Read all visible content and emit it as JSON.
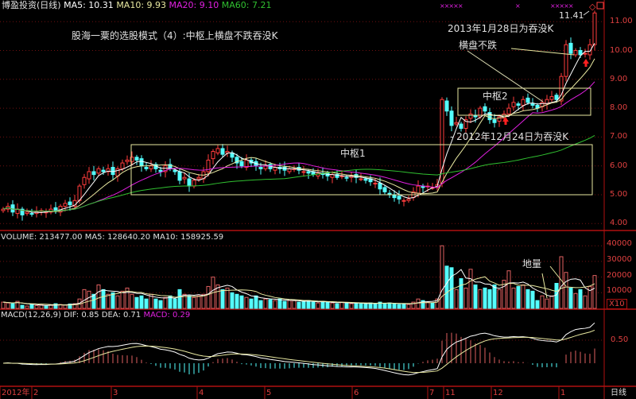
{
  "header": {
    "stock": "博盈投资(日线)",
    "ma5": "MA5: 10.31",
    "ma10": "MA10: 9.93",
    "ma20": "MA20: 9.10",
    "ma60": "MA60: 7.21"
  },
  "volume_header": {
    "volume": "VOLUME: 213477.00",
    "ma5": "MA5: 128640.20",
    "ma10": "MA10: 158925.59"
  },
  "macd_header": {
    "name": "MACD(12,26,9)",
    "dif": "DIF: 0.85",
    "dea": "DEA: 0.71",
    "macd": "MACD: 0.29"
  },
  "annotations": {
    "title": "股海一粟的选股模式（4）:中枢上横盘不跌吞没K",
    "zhongshu1": "中枢1",
    "zhongshu2": "中枢2",
    "engulf1": "- 2012年12月24日为吞没K",
    "engulf2": "2013年1月28日为吞没K",
    "sideways": "横盘不跌",
    "low_volume": "地量",
    "high_price": "11.41",
    "markers_left": "×××××",
    "markers_mid": "×",
    "markers_right": "×××××"
  },
  "price_axis": [
    "11.00",
    "10.00",
    "9.00",
    "8.00",
    "7.00",
    "6.00",
    "5.00",
    "4.00"
  ],
  "volume_axis": [
    "40000",
    "30000",
    "20000",
    "10000"
  ],
  "volume_unit": "X10",
  "macd_axis": [
    "0.50"
  ],
  "date_axis": [
    "2012年",
    "2",
    "3",
    "4",
    "5",
    "6",
    "7",
    "11",
    "12",
    "1"
  ],
  "period_label": "日线",
  "colors": {
    "up": "#ff3c3c",
    "down": "#54ffff",
    "ma5": "#ffffff",
    "ma10": "#e8e8a0",
    "ma20": "#e020e0",
    "ma60": "#30c030",
    "axis": "#b01010",
    "box": "#e8e8a0"
  },
  "chart_data": {
    "type": "candlestick",
    "price_range": [
      3.9,
      11.7
    ],
    "closes": [
      4.5,
      4.6,
      4.4,
      4.5,
      4.3,
      4.4,
      4.35,
      4.4,
      4.45,
      4.4,
      4.5,
      4.45,
      4.6,
      4.7,
      4.65,
      4.8,
      5.3,
      5.6,
      5.8,
      5.7,
      5.9,
      5.8,
      5.9,
      5.7,
      5.9,
      6.1,
      6.2,
      6.3,
      6.2,
      6.0,
      5.9,
      6.0,
      5.9,
      5.8,
      6.0,
      5.9,
      5.8,
      5.5,
      5.6,
      5.3,
      5.5,
      5.6,
      5.8,
      6.2,
      6.5,
      6.6,
      6.4,
      6.5,
      6.3,
      6.1,
      6.0,
      6.2,
      6.1,
      6.0,
      5.9,
      6.0,
      5.9,
      5.95,
      5.9,
      5.85,
      5.9,
      5.9,
      5.85,
      5.8,
      5.75,
      5.7,
      5.75,
      5.7,
      5.65,
      5.7,
      5.6,
      5.65,
      5.6,
      5.65,
      5.6,
      5.55,
      5.5,
      5.45,
      5.4,
      5.2,
      5.1,
      5.0,
      4.9,
      4.85,
      4.8,
      4.85,
      5.1,
      5.3,
      5.25,
      5.3,
      5.25,
      5.35,
      8.3,
      7.9,
      7.4,
      7.5,
      7.3,
      7.6,
      7.8,
      7.7,
      8.0,
      7.9,
      7.6,
      7.5,
      7.7,
      7.8,
      8.0,
      8.2,
      8.1,
      8.3,
      8.2,
      8.1,
      8.0,
      8.2,
      8.3,
      8.4,
      8.3,
      9.1,
      10.2,
      9.9,
      10.0,
      9.85,
      9.9,
      10.2,
      11.3
    ],
    "volumes": [
      4000,
      3500,
      3000,
      4500,
      2000,
      1500,
      2500,
      1800,
      2200,
      1500,
      2000,
      3000,
      2500,
      2200,
      2800,
      3000,
      6000,
      12000,
      11000,
      9000,
      15000,
      12000,
      9000,
      10000,
      8000,
      11000,
      13000,
      9000,
      7000,
      8000,
      6000,
      9000,
      6000,
      5000,
      7000,
      8000,
      6000,
      12000,
      9000,
      8000,
      7000,
      8000,
      9000,
      14000,
      20000,
      15000,
      12000,
      13000,
      10000,
      9000,
      8000,
      7000,
      6000,
      8000,
      5000,
      6000,
      5500,
      5000,
      6000,
      4500,
      5000,
      5000,
      4000,
      4500,
      5000,
      4000,
      3500,
      4500,
      4000,
      3500,
      3000,
      4000,
      3500,
      3000,
      3500,
      3000,
      3000,
      3500,
      3000,
      4000,
      3000,
      3500,
      3000,
      2500,
      3000,
      2500,
      4000,
      6000,
      5000,
      4000,
      3500,
      6000,
      40000,
      27000,
      26000,
      12000,
      19000,
      13000,
      25000,
      15000,
      12000,
      13000,
      12000,
      15000,
      12000,
      18000,
      24000,
      13000,
      14000,
      15000,
      12000,
      11000,
      5000,
      8000,
      6000,
      8000,
      16000,
      33000,
      23000,
      13000,
      9500,
      12000,
      8000,
      14000,
      21000
    ],
    "volume_range": [
      0,
      45000
    ],
    "moving_averages": [
      "MA5",
      "MA10",
      "MA20",
      "MA60"
    ],
    "macd": {
      "fast": 12,
      "slow": 26,
      "signal": 9
    }
  }
}
